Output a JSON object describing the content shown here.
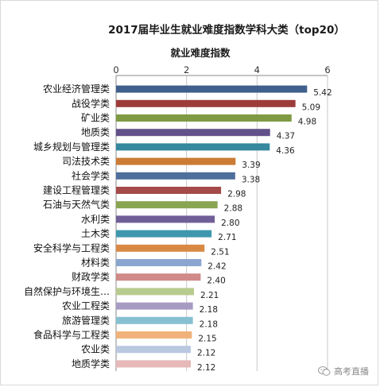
{
  "chart_data": {
    "type": "bar",
    "orientation": "horizontal",
    "title": "2017届毕业生就业难度指数学科大类（top20）",
    "axis_label": "就业难度指数",
    "xlim": [
      0,
      6
    ],
    "ticks": [
      0,
      2,
      4,
      6
    ],
    "grid": true,
    "categories": [
      "农业经济管理类",
      "战役学类",
      "矿业类",
      "地质类",
      "城乡规划与管理类",
      "司法技术类",
      "社会学类",
      "建设工程管理类",
      "石油与天然气类",
      "水利类",
      "土木类",
      "安全科学与工程类",
      "材料类",
      "财政学类",
      "自然保护与环境生…",
      "农业工程类",
      "旅游管理类",
      "食品科学与工程类",
      "农业类",
      "地质学类"
    ],
    "values": [
      5.42,
      5.09,
      4.98,
      4.37,
      4.36,
      3.39,
      3.38,
      2.98,
      2.88,
      2.8,
      2.71,
      2.51,
      2.42,
      2.4,
      2.21,
      2.18,
      2.18,
      2.15,
      2.12,
      2.12
    ],
    "value_labels": [
      "5.42",
      "5.09",
      "4.98",
      "4.37",
      "4.36",
      "3.39",
      "3.38",
      "2.98",
      "2.88",
      "2.80",
      "2.71",
      "2.51",
      "2.42",
      "2.40",
      "2.21",
      "2.18",
      "2.18",
      "2.15",
      "2.12",
      "2.12"
    ],
    "colors": [
      "#3f5f8c",
      "#9c3c3a",
      "#7f9a43",
      "#62508a",
      "#35889e",
      "#cc7b35",
      "#4f6f9c",
      "#a44a48",
      "#8aa552",
      "#705e97",
      "#3e97ac",
      "#d88a45",
      "#8aa6d0",
      "#d08a88",
      "#b8cb8e",
      "#a89bc3",
      "#86c0d2",
      "#f0b27a",
      "#b9c8e0",
      "#e6b8b7"
    ]
  },
  "watermark": {
    "text": "高考直播",
    "icon": "wechat-icon"
  }
}
